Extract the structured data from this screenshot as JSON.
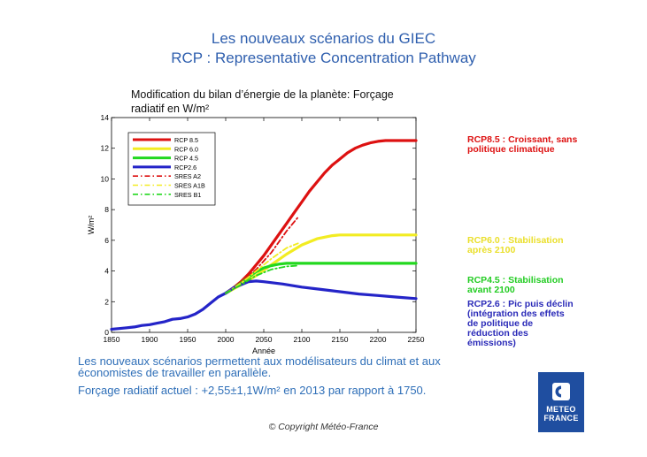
{
  "slide": {
    "title1": "Les nouveaux scénarios du GIEC",
    "title2": "RCP : Representative Concentration Pathway",
    "body1_line1": "Les nouveaux scénarios permettent aux modélisateurs du climat et aux",
    "body1_line2": "économistes de travailler en parallèle.",
    "body2": "Forçage radiatif actuel : +2,55±1,1W/m² en 2013 par rapport à 1750.",
    "copyright": "© Copyright Météo-France",
    "logo_line1": "METEO",
    "logo_line2": "FRANCE"
  },
  "annotations": {
    "rcp85": [
      "RCP8.5 : Croissant, sans",
      "politique climatique"
    ],
    "rcp60": [
      "RCP6.0 : Stabilisation",
      "après 2100"
    ],
    "rcp45": [
      "RCP4.5 : Stabilisation",
      "avant 2100"
    ],
    "rcp26": [
      "RCP2.6 : Pic puis déclin",
      "(intégration des effets",
      "de politique de",
      "réduction des",
      "émissions)"
    ]
  },
  "colors": {
    "rcp85": "#dd1111",
    "rcp60": "#f2ec22",
    "rcp45": "#22d81e",
    "rcp26": "#2424c8",
    "title": "#2f5fae",
    "body": "#2f6fb8",
    "logo": "#1f4ea0",
    "annot85": "#dd1111",
    "annot60": "#eadf2a",
    "annot45": "#22cc22",
    "annot26": "#2a2ab8"
  },
  "chart_data": {
    "type": "line",
    "title": "Modification du bilan d’énergie de la planète: Forçage",
    "title_line2": "radiatif en W/m²",
    "xlabel": "Année",
    "ylabel": "W/m²",
    "xlim": [
      1850,
      2250
    ],
    "ylim": [
      0,
      14
    ],
    "xticks": [
      1850,
      1900,
      1950,
      2000,
      2050,
      2100,
      2150,
      2200,
      2250
    ],
    "yticks": [
      0,
      2,
      4,
      6,
      8,
      10,
      12,
      14
    ],
    "legend_position": "top-left",
    "series": [
      {
        "name": "RCP 8.5",
        "key": "rcp85",
        "style": "solid",
        "x": [
          2000,
          2010,
          2020,
          2030,
          2040,
          2050,
          2060,
          2070,
          2080,
          2090,
          2100,
          2110,
          2120,
          2130,
          2140,
          2150,
          2160,
          2170,
          2180,
          2190,
          2200,
          2210,
          2220,
          2230,
          2240,
          2250
        ],
        "y": [
          2.55,
          2.9,
          3.3,
          3.8,
          4.4,
          5.0,
          5.7,
          6.4,
          7.1,
          7.8,
          8.5,
          9.2,
          9.8,
          10.4,
          10.9,
          11.3,
          11.7,
          12.0,
          12.2,
          12.35,
          12.45,
          12.5,
          12.5,
          12.5,
          12.5,
          12.5
        ]
      },
      {
        "name": "RCP 6.0",
        "key": "rcp60",
        "style": "solid",
        "x": [
          2000,
          2020,
          2040,
          2060,
          2080,
          2100,
          2120,
          2140,
          2150,
          2160,
          2180,
          2200,
          2250
        ],
        "y": [
          2.55,
          3.1,
          3.7,
          4.4,
          5.1,
          5.7,
          6.1,
          6.3,
          6.35,
          6.35,
          6.35,
          6.35,
          6.35
        ]
      },
      {
        "name": "RCP 4.5",
        "key": "rcp45",
        "style": "solid",
        "x": [
          2000,
          2020,
          2030,
          2040,
          2050,
          2060,
          2070,
          2080,
          2100,
          2150,
          2200,
          2250
        ],
        "y": [
          2.55,
          3.2,
          3.6,
          3.95,
          4.2,
          4.35,
          4.45,
          4.5,
          4.5,
          4.5,
          4.5,
          4.5
        ]
      },
      {
        "name": "RCP2.6",
        "key": "rcp26",
        "style": "solid",
        "x": [
          1850,
          1860,
          1870,
          1880,
          1890,
          1900,
          1910,
          1920,
          1930,
          1940,
          1950,
          1960,
          1970,
          1980,
          1990,
          2000,
          2010,
          2020,
          2030,
          2040,
          2050,
          2075,
          2100,
          2125,
          2150,
          2175,
          2200,
          2225,
          2250
        ],
        "y": [
          0.2,
          0.25,
          0.3,
          0.35,
          0.45,
          0.5,
          0.6,
          0.7,
          0.85,
          0.9,
          1.0,
          1.2,
          1.5,
          1.9,
          2.3,
          2.55,
          2.9,
          3.1,
          3.3,
          3.35,
          3.3,
          3.15,
          2.95,
          2.8,
          2.65,
          2.5,
          2.4,
          2.3,
          2.2
        ]
      },
      {
        "name": "SRES A2",
        "key": "rcp85",
        "style": "dashdot",
        "x": [
          2000,
          2020,
          2040,
          2060,
          2080,
          2095
        ],
        "y": [
          2.55,
          3.2,
          4.1,
          5.2,
          6.6,
          7.5
        ]
      },
      {
        "name": "SRES A1B",
        "key": "rcp60",
        "style": "dashdot",
        "x": [
          2000,
          2020,
          2040,
          2060,
          2080,
          2095
        ],
        "y": [
          2.55,
          3.2,
          4.0,
          4.8,
          5.5,
          5.8
        ]
      },
      {
        "name": "SRES B1",
        "key": "rcp45",
        "style": "dashdot",
        "x": [
          2000,
          2020,
          2040,
          2060,
          2080,
          2095
        ],
        "y": [
          2.55,
          3.1,
          3.7,
          4.1,
          4.3,
          4.35
        ]
      }
    ]
  }
}
